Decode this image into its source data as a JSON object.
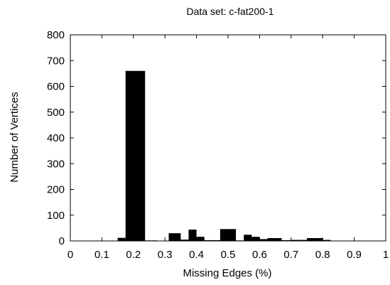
{
  "chart_data": {
    "type": "bar",
    "title": "Data set: c-fat200-1",
    "xlabel": "Missing Edges (%)",
    "ylabel": "Number of Vertices",
    "xlim": [
      0,
      1
    ],
    "ylim": [
      0,
      800
    ],
    "x_ticks": [
      "0",
      "0.1",
      "0.2",
      "0.3",
      "0.4",
      "0.5",
      "0.6",
      "0.7",
      "0.8",
      "0.9",
      "1"
    ],
    "y_ticks": [
      "0",
      "100",
      "200",
      "300",
      "400",
      "500",
      "600",
      "700",
      "800"
    ],
    "grid": false,
    "bar_color": "#000000",
    "bins": [
      {
        "x0": 0.15,
        "x1": 0.175,
        "value": 12
      },
      {
        "x0": 0.175,
        "x1": 0.237,
        "value": 660
      },
      {
        "x0": 0.237,
        "x1": 0.275,
        "value": 2
      },
      {
        "x0": 0.275,
        "x1": 0.312,
        "value": 1
      },
      {
        "x0": 0.312,
        "x1": 0.35,
        "value": 30
      },
      {
        "x0": 0.35,
        "x1": 0.375,
        "value": 5
      },
      {
        "x0": 0.375,
        "x1": 0.4,
        "value": 44
      },
      {
        "x0": 0.4,
        "x1": 0.425,
        "value": 16
      },
      {
        "x0": 0.425,
        "x1": 0.475,
        "value": 3
      },
      {
        "x0": 0.475,
        "x1": 0.525,
        "value": 46
      },
      {
        "x0": 0.525,
        "x1": 0.55,
        "value": 2
      },
      {
        "x0": 0.55,
        "x1": 0.575,
        "value": 24
      },
      {
        "x0": 0.575,
        "x1": 0.6,
        "value": 16
      },
      {
        "x0": 0.6,
        "x1": 0.625,
        "value": 7
      },
      {
        "x0": 0.625,
        "x1": 0.67,
        "value": 11
      },
      {
        "x0": 0.67,
        "x1": 0.7,
        "value": 3
      },
      {
        "x0": 0.7,
        "x1": 0.75,
        "value": 4
      },
      {
        "x0": 0.75,
        "x1": 0.8,
        "value": 11
      },
      {
        "x0": 0.8,
        "x1": 0.825,
        "value": 4
      },
      {
        "x0": 0.825,
        "x1": 0.85,
        "value": 1
      }
    ]
  }
}
